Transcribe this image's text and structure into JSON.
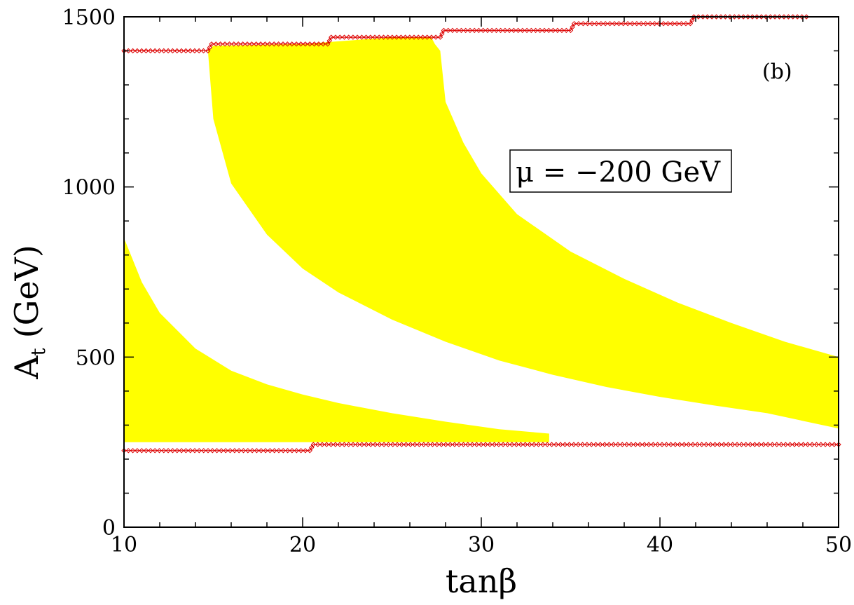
{
  "chart_data": {
    "type": "area",
    "panel_label": "(b)",
    "xlabel": "tanβ",
    "ylabel_main": "A",
    "ylabel_sub": "t",
    "ylabel_unit": "(GeV)",
    "xlim": [
      10,
      50
    ],
    "ylim": [
      0,
      1500
    ],
    "xticks": [
      10,
      20,
      30,
      40,
      50
    ],
    "yticks": [
      0,
      500,
      1000,
      1500
    ],
    "x_minor_step": 2,
    "y_minor_step": 100,
    "grid": false,
    "annotation": "μ = −200 GeV",
    "colors": {
      "region_fill": "#ffff00",
      "boundary_marker": "#dd0000",
      "frame": "#000000"
    },
    "regions": [
      {
        "upper": [
          [
            10,
            850
          ],
          [
            11,
            720
          ],
          [
            12,
            630
          ],
          [
            14,
            525
          ],
          [
            16,
            460
          ],
          [
            18,
            420
          ],
          [
            20,
            390
          ],
          [
            22,
            365
          ],
          [
            25,
            335
          ],
          [
            28,
            310
          ],
          [
            31,
            288
          ],
          [
            33.8,
            275
          ]
        ],
        "lower": [
          [
            10,
            250
          ],
          [
            20,
            250
          ],
          [
            33.8,
            250
          ]
        ]
      },
      {
        "upper": [
          [
            14.7,
            1400
          ],
          [
            15,
            1415
          ],
          [
            20,
            1420
          ],
          [
            25,
            1440
          ],
          [
            27.2,
            1440
          ],
          [
            27.4,
            1420
          ],
          [
            27.7,
            1400
          ],
          [
            28,
            1250
          ],
          [
            29,
            1130
          ],
          [
            30,
            1040
          ],
          [
            32,
            920
          ],
          [
            35,
            810
          ],
          [
            38,
            730
          ],
          [
            41,
            660
          ],
          [
            44,
            600
          ],
          [
            47,
            545
          ],
          [
            50,
            500
          ]
        ],
        "lower": [
          [
            14.7,
            1400
          ],
          [
            15,
            1200
          ],
          [
            16,
            1010
          ],
          [
            18,
            860
          ],
          [
            20,
            760
          ],
          [
            22,
            690
          ],
          [
            25,
            610
          ],
          [
            28,
            545
          ],
          [
            31,
            490
          ],
          [
            34,
            448
          ],
          [
            37,
            412
          ],
          [
            40,
            383
          ],
          [
            43,
            358
          ],
          [
            46,
            335
          ],
          [
            50,
            290
          ]
        ]
      }
    ],
    "upper_boundary": [
      [
        10,
        1400
      ],
      [
        14.7,
        1400
      ],
      [
        14.9,
        1420
      ],
      [
        21.4,
        1420
      ],
      [
        21.6,
        1440
      ],
      [
        27.7,
        1440
      ],
      [
        27.9,
        1460
      ],
      [
        35,
        1460
      ],
      [
        35.2,
        1480
      ],
      [
        41.7,
        1480
      ],
      [
        41.9,
        1500
      ],
      [
        48.2,
        1500
      ]
    ],
    "lower_boundary": [
      [
        10,
        225
      ],
      [
        20.4,
        225
      ],
      [
        20.6,
        243
      ],
      [
        50,
        243
      ]
    ]
  }
}
